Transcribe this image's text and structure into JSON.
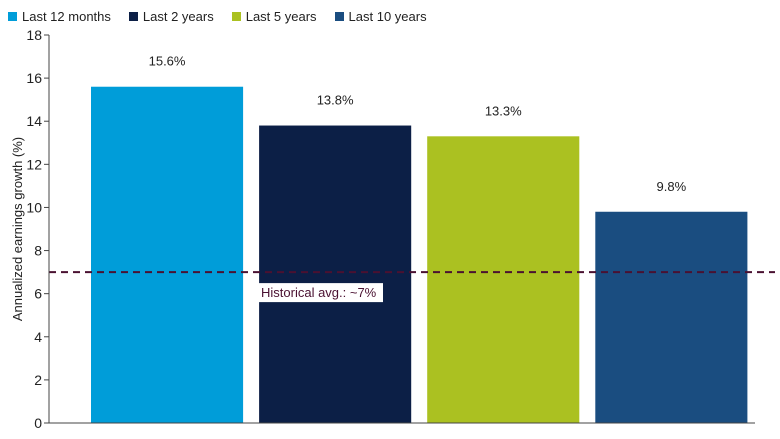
{
  "chart_data": {
    "type": "bar",
    "categories": [
      "Last 12 months",
      "Last 2 years",
      "Last 5 years",
      "Last 10 years"
    ],
    "series": [
      {
        "values": [
          15.6,
          13.8,
          13.3,
          9.8
        ]
      }
    ],
    "value_labels": [
      "15.6%",
      "13.8%",
      "13.3%",
      "9.8%"
    ],
    "colors": [
      "#009dd9",
      "#0c1f46",
      "#abc121",
      "#1a4d80"
    ],
    "ylabel": "Annualized earnings growth (%)",
    "ylim": [
      0,
      18
    ],
    "yticks": [
      0,
      2,
      4,
      6,
      8,
      10,
      12,
      14,
      16,
      18
    ],
    "legend_position": "top-left",
    "grid": false,
    "reference_line": {
      "value": 7,
      "label": "Historical avg.: ~7%",
      "style": "dashed",
      "color": "#4a1131"
    }
  }
}
